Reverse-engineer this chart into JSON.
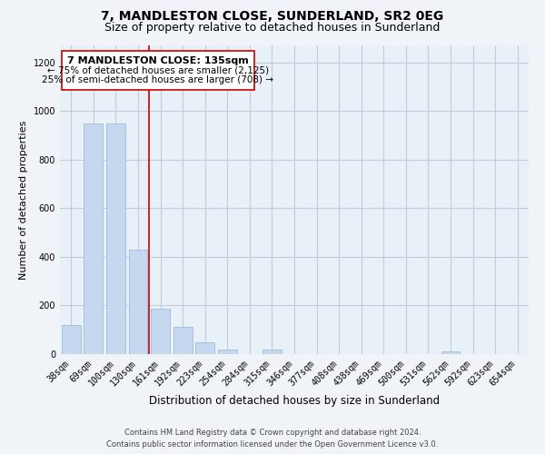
{
  "title": "7, MANDLESTON CLOSE, SUNDERLAND, SR2 0EG",
  "subtitle": "Size of property relative to detached houses in Sunderland",
  "xlabel": "Distribution of detached houses by size in Sunderland",
  "ylabel": "Number of detached properties",
  "categories": [
    "38sqm",
    "69sqm",
    "100sqm",
    "130sqm",
    "161sqm",
    "192sqm",
    "223sqm",
    "254sqm",
    "284sqm",
    "315sqm",
    "346sqm",
    "377sqm",
    "408sqm",
    "438sqm",
    "469sqm",
    "500sqm",
    "531sqm",
    "562sqm",
    "592sqm",
    "623sqm",
    "654sqm"
  ],
  "values": [
    120,
    950,
    950,
    430,
    185,
    113,
    47,
    20,
    0,
    18,
    0,
    0,
    0,
    0,
    0,
    0,
    0,
    13,
    0,
    0,
    0
  ],
  "bar_color": "#c5d8f0",
  "bar_edge_color": "#a0bcd8",
  "property_line_color": "#cc0000",
  "annotation_title": "7 MANDLESTON CLOSE: 135sqm",
  "annotation_line1": "← 75% of detached houses are smaller (2,125)",
  "annotation_line2": "25% of semi-detached houses are larger (708) →",
  "annotation_box_color": "#ffffff",
  "annotation_box_edge_color": "#cc0000",
  "ylim": [
    0,
    1270
  ],
  "yticks": [
    0,
    200,
    400,
    600,
    800,
    1000,
    1200
  ],
  "footer_line1": "Contains HM Land Registry data © Crown copyright and database right 2024.",
  "footer_line2": "Contains public sector information licensed under the Open Government Licence v3.0.",
  "background_color": "#f0f4f8",
  "plot_bg_color": "#e8f0f8",
  "grid_color": "#c0cedc",
  "title_fontsize": 10,
  "subtitle_fontsize": 9,
  "xlabel_fontsize": 8.5,
  "ylabel_fontsize": 8,
  "tick_fontsize": 7,
  "footer_fontsize": 6,
  "annotation_title_fontsize": 8,
  "annotation_text_fontsize": 7.5
}
